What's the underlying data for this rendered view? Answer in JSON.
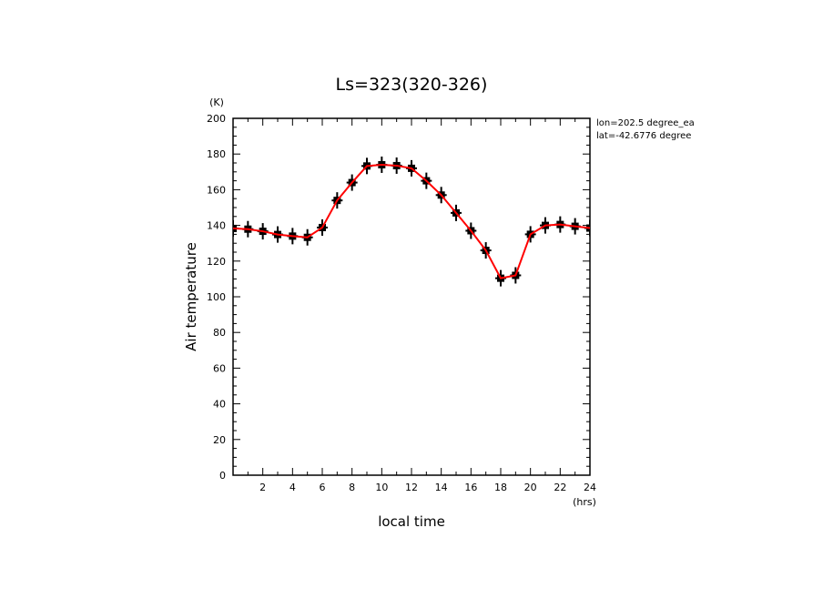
{
  "chart_data": {
    "type": "line",
    "title": "Ls=323(320-326)",
    "xlabel": "local time",
    "ylabel": "Air temperature",
    "xunit": "(hrs)",
    "yunit": "(K)",
    "xlim": [
      0,
      24
    ],
    "ylim": [
      0,
      200
    ],
    "xticks": [
      2,
      4,
      6,
      8,
      10,
      12,
      14,
      16,
      18,
      20,
      22,
      24
    ],
    "yticks": [
      0,
      20,
      40,
      60,
      80,
      100,
      120,
      140,
      160,
      180,
      200
    ],
    "grid": false,
    "annotations": [
      "lon=202.5 degree_ea",
      "lat=-42.6776 degree"
    ],
    "series": [
      {
        "color": "#ff0000",
        "x": [
          0,
          1,
          2,
          3,
          4,
          5,
          6,
          7,
          8,
          9,
          10,
          11,
          12,
          13,
          14,
          15,
          16,
          17,
          18,
          19,
          20,
          21,
          22,
          23,
          24
        ],
        "y": [
          138.3,
          137.9,
          136.7,
          134.9,
          134,
          133.3,
          138.8,
          154,
          164,
          173.3,
          174,
          173.5,
          172,
          165,
          157,
          147,
          137,
          126,
          110.4,
          112,
          135,
          140,
          140.5,
          139.5,
          138.5
        ]
      }
    ],
    "markers": {
      "color": "#000000",
      "shape": "cross"
    }
  }
}
